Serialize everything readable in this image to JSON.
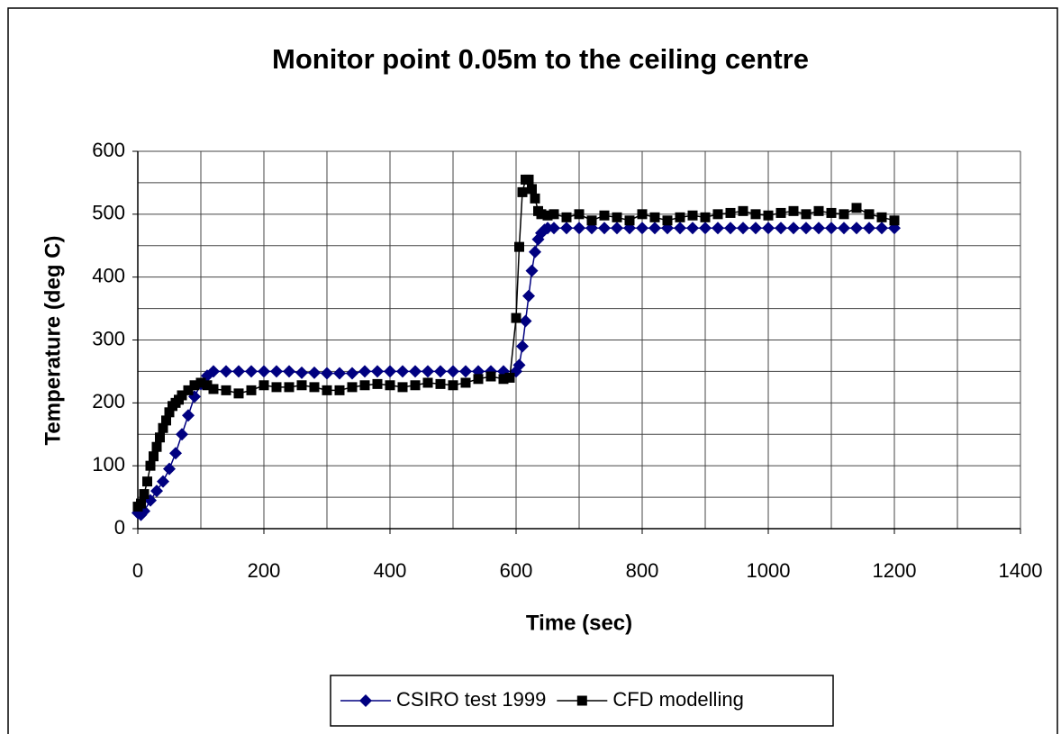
{
  "chart_data": {
    "type": "line",
    "title": "Monitor point 0.05m to the ceiling centre",
    "xlabel": "Time (sec)",
    "ylabel": "Temperature (deg C)",
    "xlim": [
      0,
      1400
    ],
    "xticks": [
      0,
      200,
      400,
      600,
      800,
      1000,
      1200,
      1400
    ],
    "ylim": [
      0,
      600
    ],
    "yticks": [
      0,
      100,
      200,
      300,
      400,
      500,
      600
    ],
    "xgrid": [
      0,
      100,
      200,
      300,
      400,
      500,
      600,
      700,
      800,
      900,
      1000,
      1100,
      1200,
      1300,
      1400
    ],
    "ygrid": [
      0,
      50,
      100,
      150,
      200,
      250,
      300,
      350,
      400,
      450,
      500,
      550,
      600
    ],
    "legend": "bottom",
    "series": [
      {
        "name": "CSIRO test 1999",
        "color": "#000080",
        "marker": "diamond",
        "x": [
          0,
          5,
          10,
          20,
          30,
          40,
          50,
          60,
          70,
          80,
          90,
          100,
          110,
          120,
          140,
          160,
          180,
          200,
          220,
          240,
          260,
          280,
          300,
          320,
          340,
          360,
          380,
          400,
          420,
          440,
          460,
          480,
          500,
          520,
          540,
          560,
          580,
          600,
          605,
          610,
          615,
          620,
          625,
          630,
          635,
          640,
          645,
          650,
          660,
          680,
          700,
          720,
          740,
          760,
          780,
          800,
          820,
          840,
          860,
          880,
          900,
          920,
          940,
          960,
          980,
          1000,
          1020,
          1040,
          1060,
          1080,
          1100,
          1120,
          1140,
          1160,
          1180,
          1200
        ],
        "values": [
          25,
          22,
          28,
          45,
          60,
          75,
          95,
          120,
          150,
          180,
          210,
          230,
          243,
          250,
          250,
          250,
          250,
          250,
          250,
          250,
          248,
          248,
          247,
          247,
          247,
          250,
          250,
          250,
          250,
          250,
          250,
          250,
          250,
          250,
          250,
          250,
          250,
          250,
          260,
          290,
          330,
          370,
          410,
          440,
          460,
          470,
          475,
          478,
          478,
          478,
          478,
          478,
          478,
          478,
          478,
          478,
          478,
          478,
          478,
          478,
          478,
          478,
          478,
          478,
          478,
          478,
          478,
          478,
          478,
          478,
          478,
          478,
          478,
          478,
          478,
          478
        ]
      },
      {
        "name": "CFD modelling",
        "color": "#000000",
        "marker": "square",
        "x": [
          0,
          5,
          10,
          15,
          20,
          25,
          30,
          35,
          40,
          45,
          50,
          55,
          60,
          65,
          70,
          80,
          90,
          100,
          110,
          120,
          140,
          160,
          180,
          200,
          220,
          240,
          260,
          280,
          300,
          320,
          340,
          360,
          380,
          400,
          420,
          440,
          460,
          480,
          500,
          520,
          540,
          560,
          580,
          590,
          600,
          605,
          610,
          615,
          620,
          625,
          630,
          635,
          640,
          650,
          660,
          680,
          700,
          720,
          740,
          760,
          780,
          800,
          820,
          840,
          860,
          880,
          900,
          920,
          940,
          960,
          980,
          1000,
          1020,
          1040,
          1060,
          1080,
          1100,
          1120,
          1140,
          1160,
          1180,
          1200
        ],
        "values": [
          35,
          40,
          55,
          75,
          100,
          115,
          130,
          145,
          160,
          172,
          185,
          195,
          200,
          205,
          212,
          220,
          228,
          232,
          228,
          222,
          220,
          215,
          220,
          228,
          225,
          225,
          228,
          225,
          220,
          220,
          225,
          228,
          230,
          228,
          225,
          228,
          232,
          230,
          228,
          232,
          238,
          242,
          238,
          240,
          335,
          448,
          535,
          555,
          555,
          540,
          525,
          505,
          500,
          498,
          500,
          495,
          500,
          490,
          498,
          495,
          490,
          500,
          495,
          490,
          495,
          498,
          495,
          500,
          502,
          505,
          500,
          498,
          502,
          505,
          500,
          505,
          502,
          500,
          510,
          500,
          495,
          490
        ]
      }
    ]
  }
}
